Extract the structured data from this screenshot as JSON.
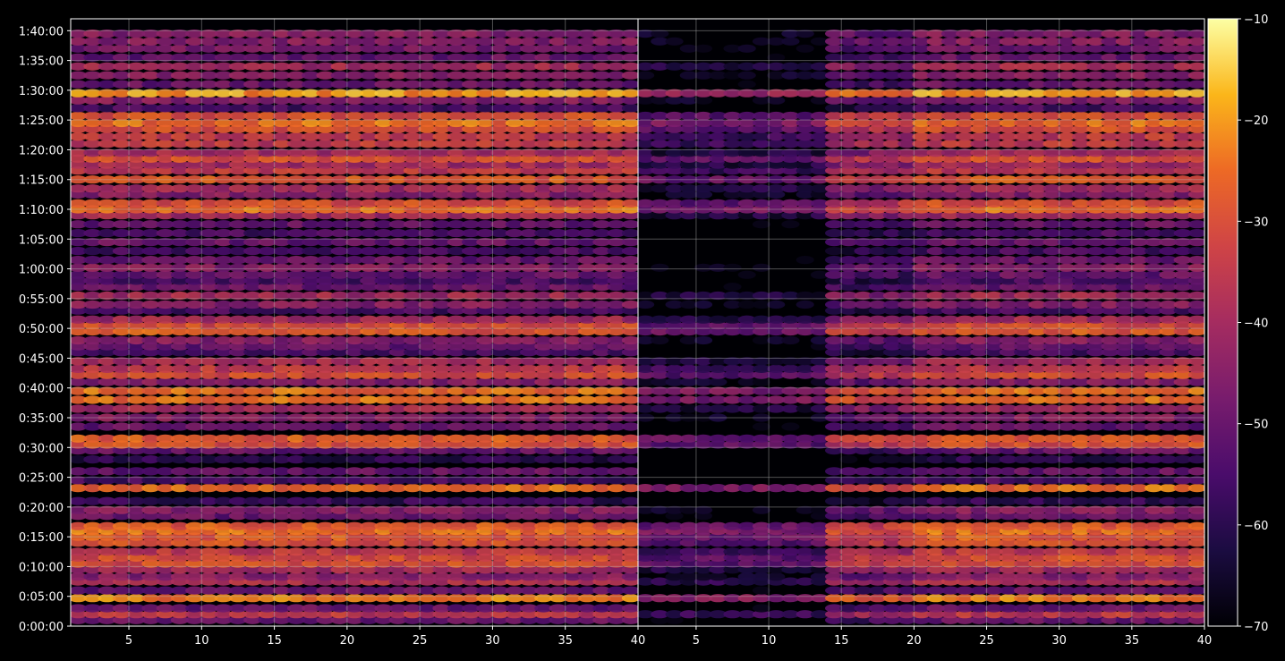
{
  "chart_data": [
    {
      "type": "heatmap",
      "panel": "left",
      "x_ticks": [
        5,
        10,
        15,
        20,
        25,
        30,
        35,
        40
      ],
      "xlim": [
        1,
        40
      ],
      "y_ticks": [
        "0:00:00",
        "0:05:00",
        "0:10:00",
        "0:15:00",
        "0:20:00",
        "0:25:00",
        "0:30:00",
        "0:35:00",
        "0:40:00",
        "0:45:00",
        "0:50:00",
        "0:55:00",
        "1:00:00",
        "1:05:00",
        "1:10:00",
        "1:15:00",
        "1:20:00",
        "1:25:00",
        "1:30:00",
        "1:35:00",
        "1:40:00"
      ],
      "ylim_seconds": [
        0,
        6120
      ],
      "grid": true,
      "colormap": "inferno",
      "bands": [
        {
          "t": 1,
          "level": -50
        },
        {
          "t": 2,
          "level": -35
        },
        {
          "t": 3,
          "level": -50
        },
        {
          "t": 4.7,
          "level": -23
        },
        {
          "t": 6,
          "level": -50
        },
        {
          "t": 7.5,
          "level": -38
        },
        {
          "t": 8.3,
          "level": -45
        },
        {
          "t": 9.5,
          "level": -40
        },
        {
          "t": 10.5,
          "level": -30
        },
        {
          "t": 11.5,
          "level": -30
        },
        {
          "t": 12.5,
          "level": -35
        },
        {
          "t": 14,
          "level": -30
        },
        {
          "t": 15,
          "level": -28
        },
        {
          "t": 16,
          "level": -25
        },
        {
          "t": 16.8,
          "level": -28
        },
        {
          "t": 18.5,
          "level": -50
        },
        {
          "t": 19.5,
          "level": -45
        },
        {
          "t": 21,
          "level": -58
        },
        {
          "t": 23.2,
          "level": -25
        },
        {
          "t": 24.5,
          "level": -55
        },
        {
          "t": 26,
          "level": -50
        },
        {
          "t": 28,
          "level": -60
        },
        {
          "t": 29.5,
          "level": -50
        },
        {
          "t": 30.5,
          "level": -30
        },
        {
          "t": 31.5,
          "level": -28
        },
        {
          "t": 33.5,
          "level": -50
        },
        {
          "t": 35,
          "level": -45
        },
        {
          "t": 36.5,
          "level": -40
        },
        {
          "t": 38,
          "level": -25
        },
        {
          "t": 39.5,
          "level": -25
        },
        {
          "t": 41,
          "level": -45
        },
        {
          "t": 42.2,
          "level": -30
        },
        {
          "t": 43.2,
          "level": -35
        },
        {
          "t": 44.5,
          "level": -40
        },
        {
          "t": 46,
          "level": -55
        },
        {
          "t": 47,
          "level": -50
        },
        {
          "t": 48,
          "level": -45
        },
        {
          "t": 49.5,
          "level": -28
        },
        {
          "t": 50.5,
          "level": -30
        },
        {
          "t": 51.5,
          "level": -40
        },
        {
          "t": 53,
          "level": -55
        },
        {
          "t": 54,
          "level": -45
        },
        {
          "t": 55.5,
          "level": -40
        },
        {
          "t": 57,
          "level": -50
        },
        {
          "t": 58,
          "level": -55
        },
        {
          "t": 59,
          "level": -50
        },
        {
          "t": 60.2,
          "level": -45
        },
        {
          "t": 61.5,
          "level": -50
        },
        {
          "t": 63,
          "level": -55
        },
        {
          "t": 64.5,
          "level": -50
        },
        {
          "t": 66,
          "level": -55
        },
        {
          "t": 67.5,
          "level": -50
        },
        {
          "t": 69,
          "level": -40
        },
        {
          "t": 70,
          "level": -25
        },
        {
          "t": 71,
          "level": -30
        },
        {
          "t": 72.5,
          "level": -45
        },
        {
          "t": 73.5,
          "level": -40
        },
        {
          "t": 75,
          "level": -28
        },
        {
          "t": 76.5,
          "level": -35
        },
        {
          "t": 77.5,
          "level": -40
        },
        {
          "t": 78.5,
          "level": -30
        },
        {
          "t": 79.5,
          "level": -40
        },
        {
          "t": 81,
          "level": -35
        },
        {
          "t": 82.2,
          "level": -35
        },
        {
          "t": 83.5,
          "level": -30
        },
        {
          "t": 84.5,
          "level": -25
        },
        {
          "t": 85.7,
          "level": -30
        },
        {
          "t": 87,
          "level": -55
        },
        {
          "t": 88.3,
          "level": -45
        },
        {
          "t": 89.5,
          "level": -20
        },
        {
          "t": 91,
          "level": -50
        },
        {
          "t": 92.5,
          "level": -45
        },
        {
          "t": 94,
          "level": -40
        },
        {
          "t": 95.5,
          "level": -50
        },
        {
          "t": 97,
          "level": -48
        },
        {
          "t": 98.2,
          "level": -45
        },
        {
          "t": 99.5,
          "level": -45
        }
      ]
    },
    {
      "type": "heatmap",
      "panel": "right",
      "x_ticks": [
        5,
        10,
        15,
        20,
        25,
        30,
        35,
        40
      ],
      "xlim": [
        1,
        40
      ],
      "grid": true,
      "colormap": "inferno",
      "note_quiet_region_x": [
        1,
        14
      ]
    },
    {
      "type": "colorbar",
      "ticks": [
        -10,
        -20,
        -30,
        -40,
        -50,
        -60,
        -70
      ],
      "range": [
        -70,
        -10
      ],
      "colormap": "inferno"
    }
  ],
  "labels": {
    "x_left": [
      "5",
      "10",
      "15",
      "20",
      "25",
      "30",
      "35",
      "40"
    ],
    "x_right": [
      "5",
      "10",
      "15",
      "20",
      "25",
      "30",
      "35",
      "40"
    ],
    "y": [
      "0:00:00",
      "0:05:00",
      "0:10:00",
      "0:15:00",
      "0:20:00",
      "0:25:00",
      "0:30:00",
      "0:35:00",
      "0:40:00",
      "0:45:00",
      "0:50:00",
      "0:55:00",
      "1:00:00",
      "1:05:00",
      "1:10:00",
      "1:15:00",
      "1:20:00",
      "1:25:00",
      "1:30:00",
      "1:35:00",
      "1:40:00"
    ],
    "colorbar": [
      "−10",
      "−20",
      "−30",
      "−40",
      "−50",
      "−60",
      "−70"
    ]
  }
}
